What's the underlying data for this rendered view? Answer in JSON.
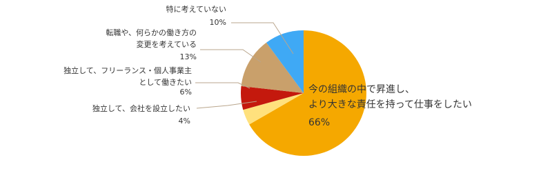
{
  "chart_data": {
    "type": "pie",
    "categories": [
      "今の組織の中で昇進し、\nより大きな責任を持って仕事をしたい",
      "独立して、会社を設立したい",
      "独立して、フリーランス・個人事業主\nとして働きたい",
      "転職や、何らかの働き方の\n変更を考えている",
      "特に考えていない"
    ],
    "values": [
      66,
      4,
      6,
      13,
      10
    ],
    "value_labels": [
      "66%",
      "4%",
      "6%",
      "13%",
      "10%"
    ],
    "colors": [
      "#f5a800",
      "#ffe17d",
      "#c4190d",
      "#c9a06b",
      "#3fa9f5"
    ]
  }
}
